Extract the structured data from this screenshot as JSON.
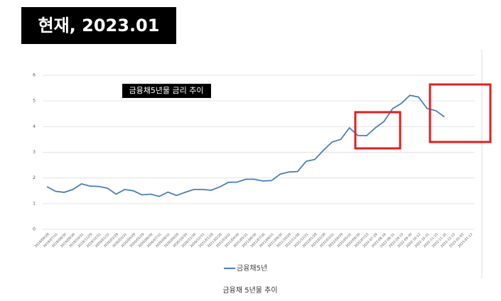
{
  "header": {
    "title": "현재, 2023.01"
  },
  "chart_data": {
    "type": "line",
    "title": "금융채5년물 금리 추이",
    "categories": [
      "2019/06/28",
      "2019/07/31",
      "2019/08/30",
      "2019/09/30",
      "2019/10/31",
      "2019/11/29",
      "2019/12/31",
      "2020/01/31",
      "2020/02/28",
      "2020/03/31",
      "2020/04/29",
      "2020/05/29",
      "2020/06/30",
      "2020/07/31",
      "2020/08/31",
      "2020/09/29",
      "2020/10/30",
      "2020/11/30",
      "2020/12/31",
      "2021/01/29",
      "2021/02/26",
      "2021/03/31",
      "2021/04/30",
      "2021/05/31",
      "2021/06/30",
      "2021/07/30",
      "2021/08/31",
      "2021/09/30",
      "2021/10/29",
      "2021/11/30",
      "2021/12/31",
      "2022/01/28",
      "2022/02/28",
      "2022/03/31",
      "2022/04/29",
      "2022/05/31",
      "2022/06/30",
      "2022/07/15",
      "2022-07-29",
      "2022-08-16",
      "2022-08-31",
      "2022-09-15",
      "2022-09-30",
      "2022-10-12",
      "2022-10-31",
      "2022-11-15",
      "2022-11-30",
      "2022-12-15",
      "2023-01-02",
      "2023-01-13"
    ],
    "series": [
      {
        "name": "금융채5년",
        "color": "#4a7ebb",
        "values": [
          1.66,
          1.48,
          1.44,
          1.55,
          1.77,
          1.68,
          1.67,
          1.6,
          1.37,
          1.55,
          1.5,
          1.34,
          1.37,
          1.28,
          1.45,
          1.32,
          1.44,
          1.55,
          1.55,
          1.52,
          1.65,
          1.83,
          1.84,
          1.95,
          1.95,
          1.88,
          1.9,
          2.15,
          2.23,
          2.25,
          2.65,
          2.72,
          3.08,
          3.4,
          3.5,
          3.95,
          3.65,
          3.65,
          3.95,
          4.2,
          4.7,
          4.9,
          5.22,
          5.15,
          4.7,
          4.62,
          4.38,
          null,
          null,
          null
        ]
      }
    ],
    "ylim": [
      0,
      6
    ],
    "yticks": [
      0,
      1,
      2,
      3,
      4,
      5,
      6
    ],
    "grid": true
  },
  "caption": "금융채 5년물 추이"
}
